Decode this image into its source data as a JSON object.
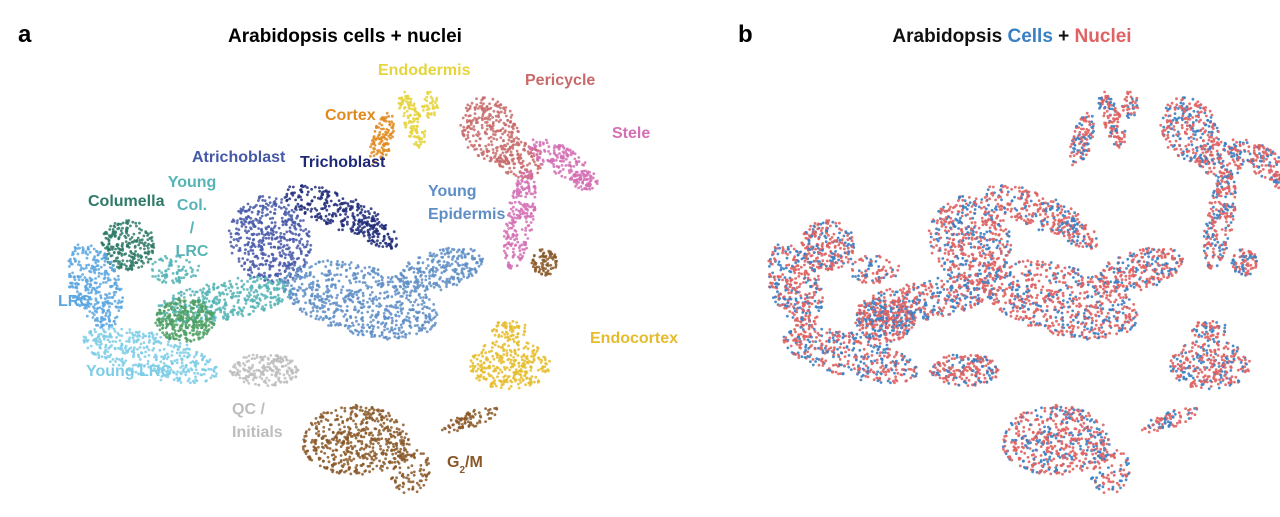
{
  "panels": [
    {
      "label": "a",
      "title": "Arabidopsis cells + nuclei",
      "clusters": [
        {
          "lines": [
            "Endodermis"
          ],
          "color": "#e6d43c"
        },
        {
          "lines": [
            "Pericycle"
          ],
          "color": "#c86a6a"
        },
        {
          "lines": [
            "Cortex"
          ],
          "color": "#e08a1e"
        },
        {
          "lines": [
            "Stele"
          ],
          "color": "#d46fb4"
        },
        {
          "lines": [
            "Atrichoblast"
          ],
          "color": "#4658a8"
        },
        {
          "lines": [
            "Trichoblast"
          ],
          "color": "#1e2a78"
        },
        {
          "lines": [
            "Young",
            "Col.",
            "/",
            "LRC"
          ],
          "color": "#56b4b6"
        },
        {
          "lines": [
            "Young",
            "Epidermis"
          ],
          "color": "#5f8ec6"
        },
        {
          "lines": [
            "Columella"
          ],
          "color": "#2e7a68"
        },
        {
          "lines": [
            "LRC"
          ],
          "color": "#5aa6e0"
        },
        {
          "lines": [
            "Young LRC"
          ],
          "color": "#7ccde6"
        },
        {
          "lines": [
            "QC /",
            "Initials"
          ],
          "color": "#bdbdbd"
        },
        {
          "lines": [
            [
              "G",
              "2",
              "/M"
            ]
          ],
          "color": "#8a5828"
        },
        {
          "lines": [
            "Endocortex"
          ],
          "color": "#e6bc2c"
        },
        {
          "lines": [],
          "color": "#4ea064"
        }
      ]
    },
    {
      "label": "b",
      "title_parts": [
        {
          "text": "Arabidopsis",
          "color": "#111111"
        },
        {
          "text": "Cells",
          "color": "#3a80c4"
        },
        {
          "text": "+",
          "color": "#111111"
        },
        {
          "text": "Nuclei",
          "color": "#e06262"
        }
      ]
    }
  ]
}
